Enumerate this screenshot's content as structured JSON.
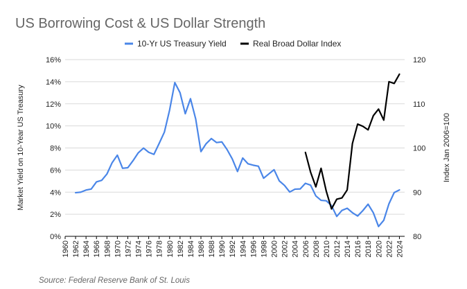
{
  "chart_data": {
    "type": "line",
    "title": "US Borrowing Cost & US Dollar Strength",
    "source": "Source: Federal Reserve Bank of St. Louis",
    "legend_position": "top-center",
    "y_left": {
      "label": "Market Yield on 10-Year US Treasury",
      "range": [
        0,
        16
      ],
      "ticks": [
        0,
        2,
        4,
        6,
        8,
        10,
        12,
        14,
        16
      ],
      "tick_labels": [
        "0%",
        "2%",
        "4%",
        "6%",
        "8%",
        "10%",
        "12%",
        "14%",
        "16%"
      ]
    },
    "y_right": {
      "label": "Index Jan 2006=100",
      "range": [
        80,
        120
      ],
      "ticks": [
        80,
        90,
        100,
        110,
        120
      ],
      "tick_labels": [
        "80",
        "90",
        "100",
        "110",
        "120"
      ]
    },
    "x": {
      "range": [
        1960,
        2025
      ],
      "tick_labels": [
        "1960",
        "1962",
        "1964",
        "1966",
        "1968",
        "1970",
        "1972",
        "1974",
        "1976",
        "1978",
        "1980",
        "1982",
        "1984",
        "1986",
        "1988",
        "1990",
        "1992",
        "1994",
        "1996",
        "1998",
        "2000",
        "2002",
        "2004",
        "2006",
        "2008",
        "2010",
        "2012",
        "2014",
        "2016",
        "2018",
        "2020",
        "2022",
        "2024"
      ]
    },
    "series": [
      {
        "name": "10-Yr US Treasury Yield",
        "axis": "left",
        "color": "#4a86e8",
        "points": [
          [
            1962,
            3.95
          ],
          [
            1963,
            4.0
          ],
          [
            1964,
            4.19
          ],
          [
            1965,
            4.28
          ],
          [
            1966,
            4.93
          ],
          [
            1967,
            5.07
          ],
          [
            1968,
            5.64
          ],
          [
            1969,
            6.67
          ],
          [
            1970,
            7.35
          ],
          [
            1971,
            6.16
          ],
          [
            1972,
            6.21
          ],
          [
            1973,
            6.85
          ],
          [
            1974,
            7.56
          ],
          [
            1975,
            7.99
          ],
          [
            1976,
            7.61
          ],
          [
            1977,
            7.42
          ],
          [
            1978,
            8.41
          ],
          [
            1979,
            9.43
          ],
          [
            1980,
            11.43
          ],
          [
            1981,
            13.92
          ],
          [
            1982,
            13.0
          ],
          [
            1983,
            11.1
          ],
          [
            1984,
            12.46
          ],
          [
            1985,
            10.62
          ],
          [
            1986,
            7.67
          ],
          [
            1987,
            8.39
          ],
          [
            1988,
            8.85
          ],
          [
            1989,
            8.49
          ],
          [
            1990,
            8.55
          ],
          [
            1991,
            7.86
          ],
          [
            1992,
            7.01
          ],
          [
            1993,
            5.87
          ],
          [
            1994,
            7.09
          ],
          [
            1995,
            6.57
          ],
          [
            1996,
            6.44
          ],
          [
            1997,
            6.35
          ],
          [
            1998,
            5.26
          ],
          [
            1999,
            5.65
          ],
          [
            2000,
            6.03
          ],
          [
            2001,
            5.02
          ],
          [
            2002,
            4.61
          ],
          [
            2003,
            4.01
          ],
          [
            2004,
            4.27
          ],
          [
            2005,
            4.29
          ],
          [
            2006,
            4.8
          ],
          [
            2007,
            4.63
          ],
          [
            2008,
            3.66
          ],
          [
            2009,
            3.26
          ],
          [
            2010,
            3.22
          ],
          [
            2011,
            2.78
          ],
          [
            2012,
            1.8
          ],
          [
            2013,
            2.35
          ],
          [
            2014,
            2.54
          ],
          [
            2015,
            2.14
          ],
          [
            2016,
            1.84
          ],
          [
            2017,
            2.33
          ],
          [
            2018,
            2.91
          ],
          [
            2019,
            2.14
          ],
          [
            2020,
            0.89
          ],
          [
            2021,
            1.45
          ],
          [
            2022,
            2.95
          ],
          [
            2023,
            3.96
          ],
          [
            2024,
            4.2
          ]
        ]
      },
      {
        "name": "Real Broad Dollar Index",
        "axis": "right",
        "color": "#000000",
        "points": [
          [
            2006,
            99.0
          ],
          [
            2007,
            94.5
          ],
          [
            2008,
            91.2
          ],
          [
            2009,
            95.4
          ],
          [
            2010,
            90.2
          ],
          [
            2011,
            86.2
          ],
          [
            2012,
            88.4
          ],
          [
            2013,
            88.7
          ],
          [
            2014,
            90.5
          ],
          [
            2015,
            101.0
          ],
          [
            2016,
            105.4
          ],
          [
            2017,
            104.9
          ],
          [
            2018,
            104.1
          ],
          [
            2019,
            107.3
          ],
          [
            2020,
            108.8
          ],
          [
            2021,
            106.3
          ],
          [
            2022,
            115.0
          ],
          [
            2023,
            114.6
          ],
          [
            2024,
            116.7
          ]
        ]
      }
    ]
  }
}
